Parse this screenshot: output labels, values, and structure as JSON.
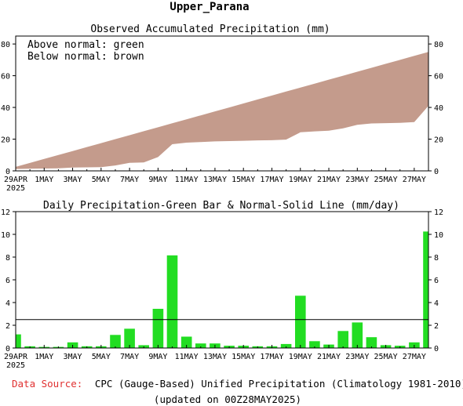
{
  "figure": {
    "title": "Upper_Parana",
    "footer_source_label": "Data Source:",
    "footer_source_text": "CPC (Gauge-Based) Unified Precipitation (Climatology 1981-2010)",
    "footer_updated": "(updated on 00Z28MAY2025)"
  },
  "colors": {
    "above_normal": "#00b000",
    "below_normal": "#c49b8c",
    "bar": "#22dd22",
    "source_label": "#e03030"
  },
  "chart_data": [
    {
      "type": "area",
      "title": "Observed Accumulated Precipitation (mm)",
      "legend": [
        "Above normal: green",
        "Below normal: brown"
      ],
      "legend_placement": "top-left",
      "x_ticks": [
        "29APR",
        "1MAY",
        "3MAY",
        "5MAY",
        "7MAY",
        "9MAY",
        "11MAY",
        "13MAY",
        "15MAY",
        "17MAY",
        "19MAY",
        "21MAY",
        "23MAY",
        "25MAY",
        "27MAY"
      ],
      "x_year_label": "2025",
      "ylim": [
        0,
        85
      ],
      "y_ticks": [
        0,
        20,
        40,
        60,
        80
      ],
      "grid": false,
      "x": [
        "29APR",
        "30APR",
        "1MAY",
        "2MAY",
        "3MAY",
        "4MAY",
        "5MAY",
        "6MAY",
        "7MAY",
        "8MAY",
        "9MAY",
        "10MAY",
        "11MAY",
        "12MAY",
        "13MAY",
        "14MAY",
        "15MAY",
        "16MAY",
        "17MAY",
        "18MAY",
        "19MAY",
        "20MAY",
        "21MAY",
        "22MAY",
        "23MAY",
        "24MAY",
        "25MAY",
        "26MAY",
        "27MAY",
        "28MAY"
      ],
      "series": [
        {
          "name": "Observed",
          "values": [
            1.2,
            1.4,
            1.5,
            1.6,
            2.1,
            2.2,
            2.3,
            3.4,
            5.1,
            5.3,
            8.7,
            16.8,
            17.8,
            18.2,
            18.6,
            18.8,
            19.0,
            19.2,
            19.3,
            19.7,
            24.3,
            24.9,
            25.3,
            26.8,
            29.0,
            29.9,
            30.1,
            30.3,
            30.8,
            41.0
          ]
        },
        {
          "name": "Normal",
          "values": [
            2.5,
            5.0,
            7.5,
            10.0,
            12.5,
            15.0,
            17.5,
            20.0,
            22.5,
            25.0,
            27.5,
            30.0,
            32.5,
            35.0,
            37.5,
            40.0,
            42.5,
            45.0,
            47.5,
            50.0,
            52.5,
            55.0,
            57.5,
            60.0,
            62.5,
            65.0,
            67.5,
            70.0,
            72.5,
            75.0
          ]
        }
      ]
    },
    {
      "type": "bar",
      "title": "Daily Precipitation-Green Bar & Normal-Solid Line (mm/day)",
      "x_ticks": [
        "29APR",
        "1MAY",
        "3MAY",
        "5MAY",
        "7MAY",
        "9MAY",
        "11MAY",
        "13MAY",
        "15MAY",
        "17MAY",
        "19MAY",
        "21MAY",
        "23MAY",
        "25MAY",
        "27MAY"
      ],
      "x_year_label": "2025",
      "ylim": [
        0,
        12
      ],
      "y_ticks": [
        0,
        2,
        4,
        6,
        8,
        10,
        12
      ],
      "grid": false,
      "x": [
        "29APR",
        "30APR",
        "1MAY",
        "2MAY",
        "3MAY",
        "4MAY",
        "5MAY",
        "6MAY",
        "7MAY",
        "8MAY",
        "9MAY",
        "10MAY",
        "11MAY",
        "12MAY",
        "13MAY",
        "14MAY",
        "15MAY",
        "16MAY",
        "17MAY",
        "18MAY",
        "19MAY",
        "20MAY",
        "21MAY",
        "22MAY",
        "23MAY",
        "24MAY",
        "25MAY",
        "26MAY",
        "27MAY",
        "28MAY"
      ],
      "values": [
        1.2,
        0.15,
        0.1,
        0.1,
        0.5,
        0.15,
        0.15,
        1.15,
        1.7,
        0.25,
        3.45,
        8.15,
        1.0,
        0.4,
        0.4,
        0.2,
        0.2,
        0.15,
        0.15,
        0.35,
        4.6,
        0.6,
        0.3,
        1.5,
        2.25,
        0.95,
        0.25,
        0.2,
        0.5,
        10.25
      ],
      "normal": 2.5
    }
  ]
}
